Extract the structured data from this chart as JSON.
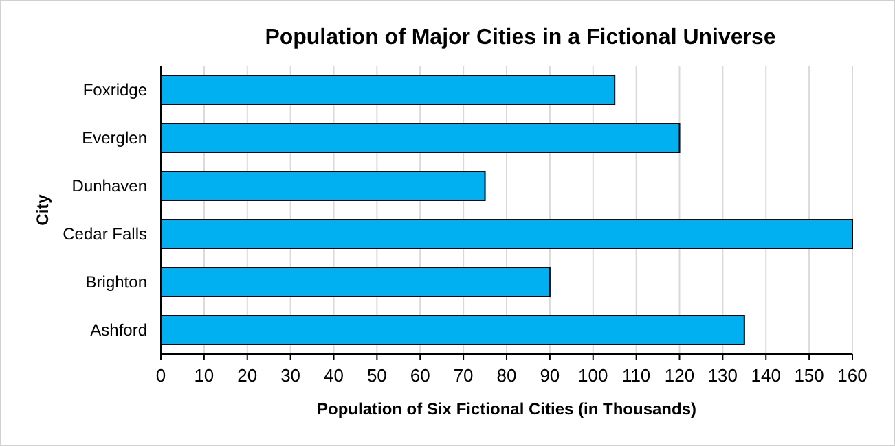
{
  "chart_data": {
    "type": "bar",
    "orientation": "horizontal",
    "title": "Population of Major Cities in a Fictional Universe",
    "xlabel": "Population of Six Fictional Cities (in Thousands)",
    "ylabel": "City",
    "categories": [
      "Foxridge",
      "Everglen",
      "Dunhaven",
      "Cedar Falls",
      "Brighton",
      "Ashford"
    ],
    "values": [
      105,
      120,
      75,
      160,
      90,
      135
    ],
    "color": "#00b0f0",
    "xlim": [
      0,
      160
    ],
    "xticks": [
      0,
      10,
      20,
      30,
      40,
      50,
      60,
      70,
      80,
      90,
      100,
      110,
      120,
      130,
      140,
      150,
      160
    ],
    "grid": "x"
  }
}
